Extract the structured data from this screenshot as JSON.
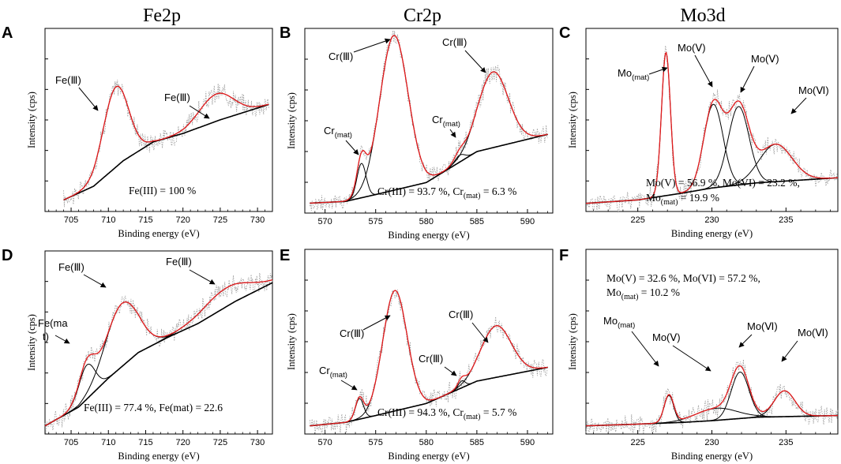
{
  "column_titles": [
    "Fe2p",
    "Cr2p",
    "Mo3d"
  ],
  "chart_data": [
    {
      "panel": "A",
      "type": "line",
      "element": "Fe2p",
      "xlabel": "Binding energy (eV)",
      "ylabel": "Intensity (cps)",
      "xlim": [
        701.5,
        732
      ],
      "ylim": [
        0,
        1
      ],
      "xticks": [
        705,
        710,
        715,
        720,
        725,
        730
      ],
      "background": [
        [
          704,
          0.04
        ],
        [
          708,
          0.12
        ],
        [
          712,
          0.27
        ],
        [
          716,
          0.38
        ],
        [
          720,
          0.43
        ],
        [
          725,
          0.51
        ],
        [
          731.5,
          0.6
        ]
      ],
      "components": [
        {
          "label": "Fe(Ⅲ)",
          "center": 711.0,
          "width": 1.7,
          "amp": 0.47
        },
        {
          "label": "Fe(Ⅲ)",
          "center": 724.5,
          "width": 2.3,
          "amp": 0.16
        }
      ],
      "annotation": "Fe(III) = 100 %"
    },
    {
      "panel": "B",
      "type": "line",
      "element": "Cr2p",
      "xlabel": "Binding energy (eV)",
      "ylabel": "Intensity (cps)",
      "xlim": [
        568,
        592.5
      ],
      "ylim": [
        0,
        1
      ],
      "xticks": [
        570,
        575,
        580,
        585,
        590
      ],
      "background": [
        [
          568.5,
          0.03
        ],
        [
          572,
          0.04
        ],
        [
          575,
          0.08
        ],
        [
          580,
          0.15
        ],
        [
          585,
          0.33
        ],
        [
          592,
          0.43
        ]
      ],
      "components": [
        {
          "label": "Cr(mat)",
          "center": 573.6,
          "width": 0.45,
          "amp": 0.2
        },
        {
          "label": "Cr(Ⅲ)",
          "center": 576.8,
          "width": 1.4,
          "amp": 0.9
        },
        {
          "label": "Cr(mat)",
          "center": 583.3,
          "width": 0.5,
          "amp": 0.04
        },
        {
          "label": "Cr(Ⅲ)",
          "center": 586.6,
          "width": 1.5,
          "amp": 0.44
        }
      ],
      "annotation": "Cr(III) = 93.7 %, Cr(mat) = 6.3 %"
    },
    {
      "panel": "C",
      "type": "line",
      "element": "Mo3d",
      "xlabel": "Binding energy (eV)",
      "ylabel": "Intensity (cps)",
      "xlim": [
        221.5,
        238.5
      ],
      "ylim": [
        0,
        1
      ],
      "xticks": [
        225,
        230,
        235
      ],
      "background": [
        [
          221.5,
          0.02
        ],
        [
          225,
          0.04
        ],
        [
          228,
          0.08
        ],
        [
          230,
          0.11
        ],
        [
          233,
          0.14
        ],
        [
          238.5,
          0.17
        ]
      ],
      "components": [
        {
          "label": "Mo(mat)",
          "center": 226.9,
          "width": 0.3,
          "amp": 0.84
        },
        {
          "label": "Mo(Ⅴ)",
          "center": 230.1,
          "width": 0.65,
          "amp": 0.49
        },
        {
          "label": "Mo(Ⅴ)",
          "center": 231.8,
          "width": 0.7,
          "amp": 0.46
        },
        {
          "label": "Mo(Ⅵ)",
          "center": 234.3,
          "width": 1.1,
          "amp": 0.22
        }
      ],
      "annotation_line1": "Mo(V) = 56.9 %, Mo(VI) = 23.2 %,",
      "annotation_line2": "Mo(mat) = 19.9 %"
    },
    {
      "panel": "D",
      "type": "line",
      "element": "Fe2p",
      "xlabel": "Binding energy (eV)",
      "ylabel": "Intensity (cps)",
      "xlim": [
        701.5,
        732
      ],
      "ylim": [
        0,
        1
      ],
      "xticks": [
        705,
        710,
        715,
        720,
        725,
        730
      ],
      "background": [
        [
          701.5,
          0.02
        ],
        [
          706,
          0.13
        ],
        [
          710,
          0.3
        ],
        [
          714,
          0.45
        ],
        [
          718,
          0.54
        ],
        [
          722,
          0.62
        ],
        [
          727,
          0.75
        ],
        [
          732,
          0.86
        ]
      ],
      "components": [
        {
          "label": "Fe(mat)",
          "center": 707.1,
          "width": 1.1,
          "amp": 0.2
        },
        {
          "label": "Fe(Ⅲ)",
          "center": 711.8,
          "width": 2.2,
          "amp": 0.37
        },
        {
          "label": "Fe(Ⅲ)",
          "center": 725.8,
          "width": 3.2,
          "amp": 0.11
        }
      ],
      "annotation": "Fe(III) = 77.4 %, Fe(mat) = 22.6"
    },
    {
      "panel": "E",
      "type": "line",
      "element": "Cr2p",
      "xlabel": "Binding energy (eV)",
      "ylabel": "Intensity (cps)",
      "xlim": [
        568,
        592.5
      ],
      "ylim": [
        0,
        1
      ],
      "xticks": [
        570,
        575,
        580,
        585,
        590
      ],
      "background": [
        [
          568.5,
          0.02
        ],
        [
          572,
          0.04
        ],
        [
          575,
          0.08
        ],
        [
          580,
          0.15
        ],
        [
          585,
          0.28
        ],
        [
          592,
          0.36
        ]
      ],
      "components": [
        {
          "label": "Cr(mat)",
          "center": 573.4,
          "width": 0.4,
          "amp": 0.12
        },
        {
          "label": "Cr(Ⅲ)",
          "center": 576.9,
          "width": 1.2,
          "amp": 0.7
        },
        {
          "label": "Cr(Ⅲ)",
          "center": 583.5,
          "width": 0.35,
          "amp": 0.04
        },
        {
          "label": "Cr(Ⅲ)",
          "center": 586.9,
          "width": 1.5,
          "amp": 0.3
        }
      ],
      "annotation": "Cr(III) = 94.3 %, Cr(mat) = 5.7 %"
    },
    {
      "panel": "F",
      "type": "line",
      "element": "Mo3d",
      "xlabel": "Binding energy (eV)",
      "ylabel": "Intensity (cps)",
      "xlim": [
        221.5,
        238.5
      ],
      "ylim": [
        0,
        1
      ],
      "xticks": [
        225,
        230,
        235
      ],
      "background": [
        [
          221.5,
          0.02
        ],
        [
          225,
          0.03
        ],
        [
          228,
          0.04
        ],
        [
          230,
          0.05
        ],
        [
          233,
          0.07
        ],
        [
          238.5,
          0.08
        ]
      ],
      "components": [
        {
          "label": "Mo(mat)",
          "center": 227.1,
          "width": 0.32,
          "amp": 0.16
        },
        {
          "label": "Mo(Ⅴ)",
          "center": 230.3,
          "width": 1.4,
          "amp": 0.07
        },
        {
          "label": "Mo(Ⅵ)",
          "center": 231.9,
          "width": 0.6,
          "amp": 0.27
        },
        {
          "label": "Mo(Ⅵ)",
          "center": 234.9,
          "width": 0.7,
          "amp": 0.15
        }
      ],
      "annotation_line1": "Mo(V) = 32.6 %, Mo(VI) = 57.2 %,",
      "annotation_line2": "Mo(mat) = 10.2 %"
    }
  ]
}
